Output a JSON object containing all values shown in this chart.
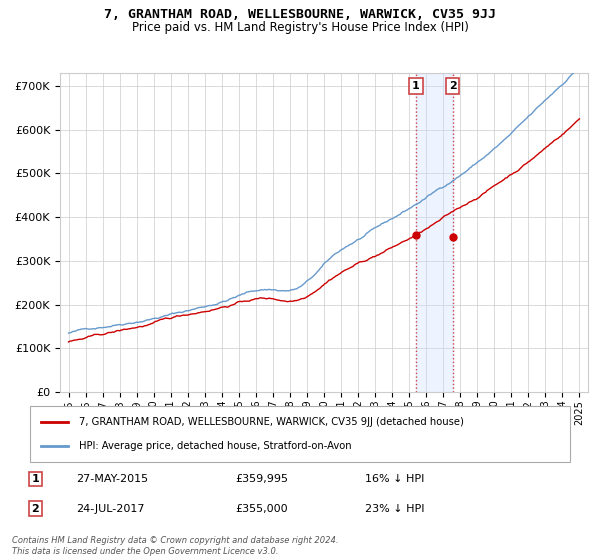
{
  "title": "7, GRANTHAM ROAD, WELLESBOURNE, WARWICK, CV35 9JJ",
  "subtitle": "Price paid vs. HM Land Registry's House Price Index (HPI)",
  "legend_label_red": "7, GRANTHAM ROAD, WELLESBOURNE, WARWICK, CV35 9JJ (detached house)",
  "legend_label_blue": "HPI: Average price, detached house, Stratford-on-Avon",
  "annotation1_date": "27-MAY-2015",
  "annotation1_price": "£359,995",
  "annotation1_hpi": "16% ↓ HPI",
  "annotation1_year": 2015.4,
  "annotation1_value": 359995,
  "annotation2_date": "24-JUL-2017",
  "annotation2_price": "£355,000",
  "annotation2_hpi": "23% ↓ HPI",
  "annotation2_year": 2017.56,
  "annotation2_value": 355000,
  "ylim": [
    0,
    730000
  ],
  "yticks": [
    0,
    100000,
    200000,
    300000,
    400000,
    500000,
    600000,
    700000
  ],
  "ytick_labels": [
    "£0",
    "£100K",
    "£200K",
    "£300K",
    "£400K",
    "£500K",
    "£600K",
    "£700K"
  ],
  "xlim_left": 1994.5,
  "xlim_right": 2025.5,
  "background_color": "#ffffff",
  "grid_color": "#cccccc",
  "red_color": "#cc0000",
  "blue_color": "#6699cc",
  "shade_color": "#cce0ff",
  "footer_text": "Contains HM Land Registry data © Crown copyright and database right 2024.\nThis data is licensed under the Open Government Licence v3.0."
}
